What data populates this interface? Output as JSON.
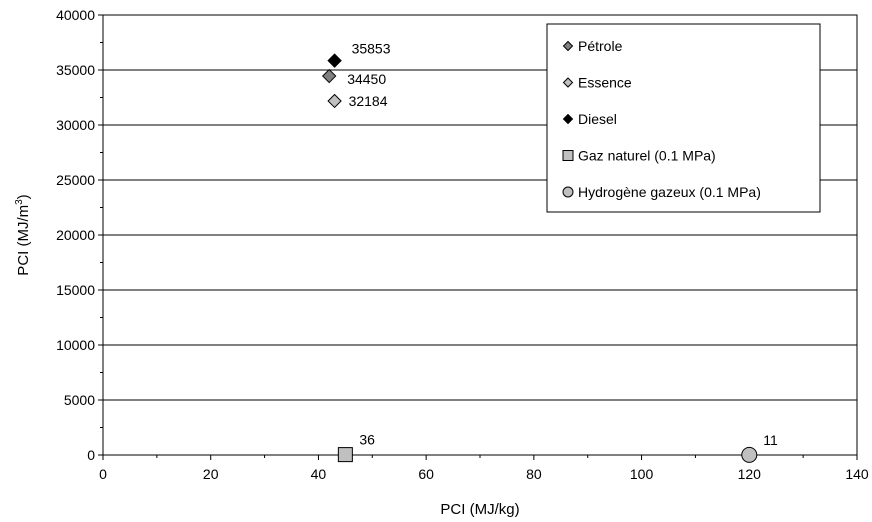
{
  "chart_data": {
    "type": "scatter",
    "xlabel": "PCI (MJ/kg)",
    "ylabel_main": "PCI (MJ/m",
    "ylabel_sup": "3",
    "ylabel_end": ")",
    "xlim": [
      0,
      140
    ],
    "ylim": [
      0,
      40000
    ],
    "xticks": [
      "0",
      "20",
      "40",
      "60",
      "80",
      "100",
      "120",
      "140"
    ],
    "yticks": [
      "0",
      "5000",
      "10000",
      "15000",
      "20000",
      "25000",
      "30000",
      "35000",
      "40000"
    ],
    "grid": "horizontal major gridlines",
    "legend_position": "top-right",
    "series": [
      {
        "name": "Pétrole",
        "marker": "diamond",
        "color": "#808080",
        "x": 42,
        "y": 34450,
        "label": "34450"
      },
      {
        "name": "Essence",
        "marker": "diamond",
        "color": "#c0c0c0",
        "x": 43,
        "y": 32184,
        "label": "32184"
      },
      {
        "name": "Diesel",
        "marker": "diamond",
        "color": "#000000",
        "x": 43,
        "y": 35853,
        "label": "35853"
      },
      {
        "name": "Gaz naturel (0.1 MPa)",
        "marker": "square",
        "color": "#c0c0c0",
        "x": 45,
        "y": 36,
        "label": "36"
      },
      {
        "name": "Hydrogène gazeux (0.1 MPa)",
        "marker": "circle",
        "color": "#c0c0c0",
        "x": 120,
        "y": 11,
        "label": "11"
      }
    ]
  }
}
